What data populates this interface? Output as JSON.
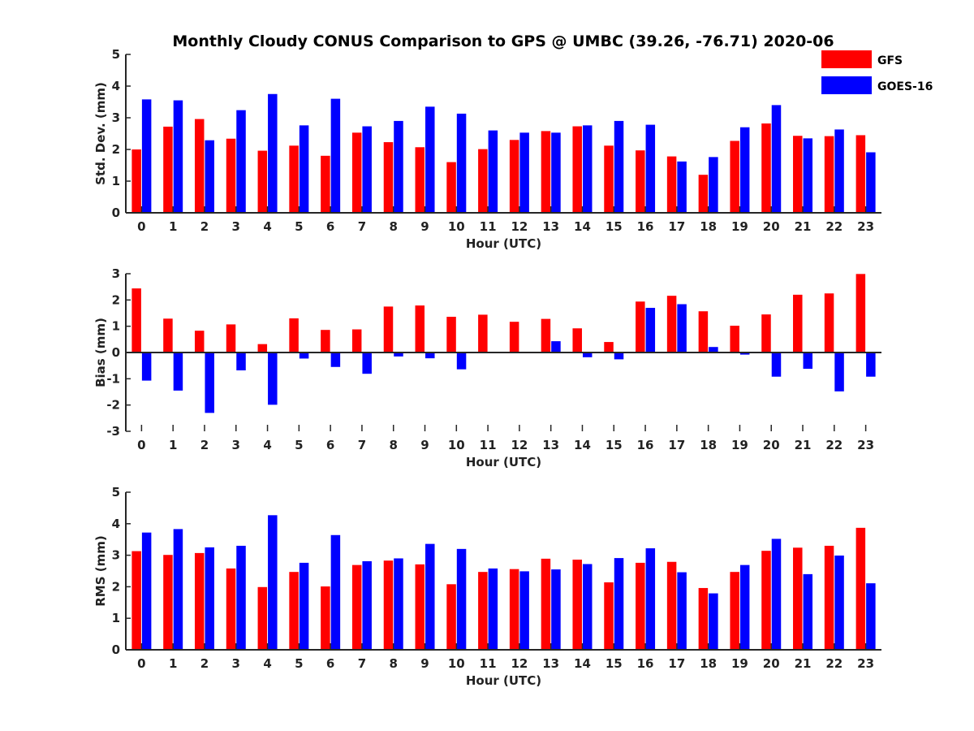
{
  "title": "Monthly Cloudy CONUS Comparison to GPS @ UMBC (39.26, -76.71) 2020-06",
  "colors": {
    "GFS": "#ff0000",
    "GOES-16": "#0000ff",
    "axis": "#262626"
  },
  "legend": [
    {
      "label": "GFS",
      "color": "#ff0000"
    },
    {
      "label": "GOES-16",
      "color": "#0000ff"
    }
  ],
  "chart_data": [
    {
      "type": "bar",
      "ylabel": "Std. Dev. (mm)",
      "xlabel": "Hour (UTC)",
      "ylim": [
        0,
        5
      ],
      "yticks": [
        0,
        1,
        2,
        3,
        4,
        5
      ],
      "categories": [
        "0",
        "1",
        "2",
        "3",
        "4",
        "5",
        "6",
        "7",
        "8",
        "9",
        "10",
        "11",
        "12",
        "13",
        "14",
        "15",
        "16",
        "17",
        "18",
        "19",
        "20",
        "21",
        "22",
        "23"
      ],
      "series": [
        {
          "name": "GFS",
          "values": [
            2.0,
            2.72,
            2.96,
            2.34,
            1.96,
            2.12,
            1.8,
            2.53,
            2.23,
            2.07,
            1.6,
            2.01,
            2.3,
            2.58,
            2.73,
            2.12,
            1.97,
            1.78,
            1.2,
            2.27,
            2.82,
            2.43,
            2.42,
            2.45
          ]
        },
        {
          "name": "GOES-16",
          "values": [
            3.58,
            3.55,
            2.29,
            3.24,
            3.75,
            2.76,
            3.6,
            2.73,
            2.9,
            3.35,
            3.13,
            2.6,
            2.53,
            2.53,
            2.76,
            2.9,
            2.78,
            1.62,
            1.76,
            2.7,
            3.4,
            2.35,
            2.63,
            1.91
          ]
        }
      ]
    },
    {
      "type": "bar",
      "ylabel": "Bias (mm)",
      "xlabel": "Hour (UTC)",
      "ylim": [
        -3,
        3
      ],
      "yticks": [
        -3,
        -2,
        -1,
        0,
        1,
        2,
        3
      ],
      "categories": [
        "0",
        "1",
        "2",
        "3",
        "4",
        "5",
        "6",
        "7",
        "8",
        "9",
        "10",
        "11",
        "12",
        "13",
        "14",
        "15",
        "16",
        "17",
        "18",
        "19",
        "20",
        "21",
        "22",
        "23"
      ],
      "series": [
        {
          "name": "GFS",
          "values": [
            2.44,
            1.29,
            0.83,
            1.07,
            0.32,
            1.3,
            0.86,
            0.88,
            1.75,
            1.79,
            1.36,
            1.44,
            1.17,
            1.28,
            0.92,
            0.4,
            1.94,
            2.16,
            1.57,
            1.02,
            1.45,
            2.2,
            2.25,
            2.99
          ]
        },
        {
          "name": "GOES-16",
          "values": [
            -1.07,
            -1.45,
            -2.3,
            -0.68,
            -1.99,
            -0.23,
            -0.55,
            -0.81,
            -0.15,
            -0.22,
            -0.64,
            0.03,
            0.02,
            0.43,
            -0.18,
            -0.26,
            1.7,
            1.84,
            0.21,
            -0.08,
            -0.92,
            -0.62,
            -1.48,
            -0.92
          ]
        }
      ]
    },
    {
      "type": "bar",
      "ylabel": "RMS (mm)",
      "xlabel": "Hour (UTC)",
      "ylim": [
        0,
        5
      ],
      "yticks": [
        0,
        1,
        2,
        3,
        4,
        5
      ],
      "categories": [
        "0",
        "1",
        "2",
        "3",
        "4",
        "5",
        "6",
        "7",
        "8",
        "9",
        "10",
        "11",
        "12",
        "13",
        "14",
        "15",
        "16",
        "17",
        "18",
        "19",
        "20",
        "21",
        "22",
        "23"
      ],
      "series": [
        {
          "name": "GFS",
          "values": [
            3.13,
            3.01,
            3.07,
            2.58,
            1.99,
            2.47,
            2.01,
            2.69,
            2.83,
            2.71,
            2.08,
            2.47,
            2.56,
            2.89,
            2.86,
            2.14,
            2.76,
            2.79,
            1.96,
            2.47,
            3.14,
            3.24,
            3.3,
            3.87
          ]
        },
        {
          "name": "GOES-16",
          "values": [
            3.72,
            3.83,
            3.25,
            3.3,
            4.27,
            2.76,
            3.64,
            2.81,
            2.9,
            3.36,
            3.2,
            2.58,
            2.49,
            2.55,
            2.72,
            2.91,
            3.22,
            2.46,
            1.79,
            2.69,
            3.52,
            2.4,
            2.99,
            2.11
          ]
        }
      ]
    }
  ]
}
